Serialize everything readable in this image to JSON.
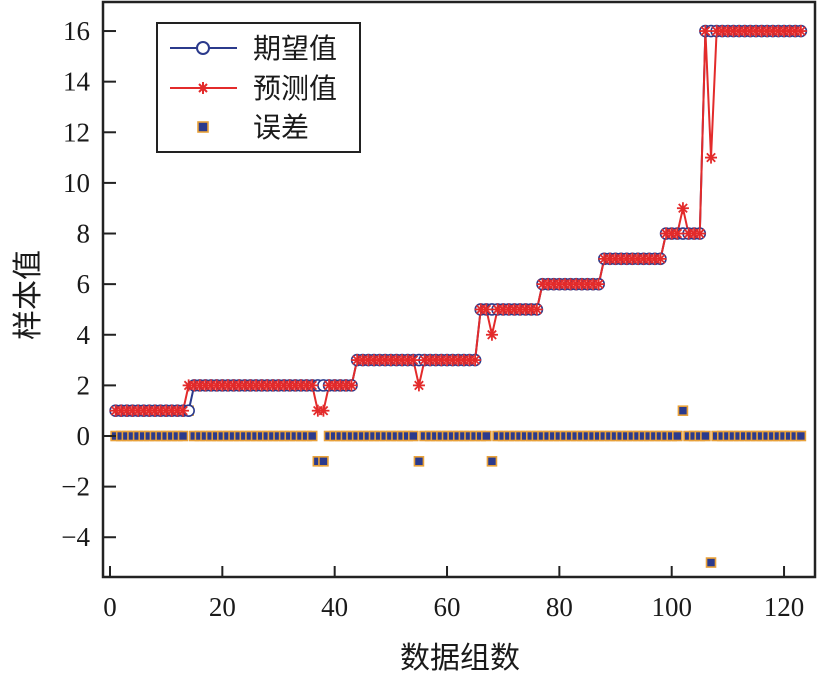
{
  "chart_data": {
    "type": "line",
    "title": "",
    "xlabel": "数据组数",
    "ylabel": "样本值",
    "xlim": [
      -1.3,
      125
    ],
    "ylim": [
      -5.6,
      17.2
    ],
    "xticks": [
      0,
      20,
      40,
      60,
      80,
      100,
      120
    ],
    "yticks": [
      -4,
      -2,
      0,
      2,
      4,
      6,
      8,
      10,
      12,
      14,
      16
    ],
    "ytick_labels": [
      "−4",
      "−2",
      "0",
      "2",
      "4",
      "6",
      "8",
      "10",
      "12",
      "14",
      "16"
    ],
    "grid": false,
    "legend_position": "upper left",
    "segments": [
      {
        "from": 1,
        "to": 14,
        "value": 1
      },
      {
        "from": 15,
        "to": 43,
        "value": 2
      },
      {
        "from": 44,
        "to": 65,
        "value": 3
      },
      {
        "from": 66,
        "to": 76,
        "value": 5
      },
      {
        "from": 77,
        "to": 87,
        "value": 6
      },
      {
        "from": 88,
        "to": 98,
        "value": 7
      },
      {
        "from": 99,
        "to": 105,
        "value": 8
      },
      {
        "from": 106,
        "to": 123,
        "value": 16
      }
    ],
    "prediction_deviations": [
      {
        "x": 14,
        "expected": 1,
        "predicted": 2
      },
      {
        "x": 37,
        "expected": 2,
        "predicted": 1
      },
      {
        "x": 38,
        "expected": 2,
        "predicted": 1
      },
      {
        "x": 55,
        "expected": 3,
        "predicted": 2
      },
      {
        "x": 68,
        "expected": 5,
        "predicted": 4
      },
      {
        "x": 102,
        "expected": 8,
        "predicted": 9
      },
      {
        "x": 107,
        "expected": 16,
        "predicted": 11
      }
    ],
    "n_points": 123,
    "series": [
      {
        "name": "期望值",
        "color": "#2b3a8c",
        "marker": "circle",
        "line": true,
        "description": "expected value, step function per segments"
      },
      {
        "name": "预测值",
        "color": "#e32b2b",
        "marker": "asterisk",
        "line": true,
        "description": "expected value plus deviations"
      },
      {
        "name": "误差",
        "color": "#2b3a8c",
        "edge_color": "#e8a13a",
        "marker": "square",
        "line": false,
        "description": "predicted minus expected; 0 except at deviation points"
      }
    ]
  },
  "legend": {
    "items": [
      {
        "label": "期望值"
      },
      {
        "label": "预测值"
      },
      {
        "label": "误差"
      }
    ]
  },
  "axes": {
    "xlabel": "数据组数",
    "ylabel": "样本值"
  }
}
